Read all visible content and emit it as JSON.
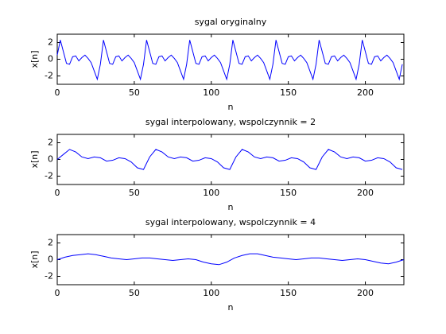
{
  "chart_data": [
    {
      "type": "line",
      "title": "sygal oryginalny",
      "xlabel": "n",
      "ylabel": "x[n]",
      "color": "#0000ff",
      "xlim": [
        0,
        225
      ],
      "ylim": [
        -3,
        3
      ],
      "xticks": [
        0,
        50,
        100,
        150,
        200
      ],
      "yticks": [
        -2,
        0,
        2
      ],
      "x": [
        0,
        2,
        4,
        6,
        8,
        10,
        12,
        14,
        16,
        18,
        20,
        22,
        24,
        26,
        28,
        30,
        32,
        34,
        36,
        38,
        40,
        42,
        44,
        46,
        48,
        50,
        52,
        54,
        56,
        58,
        60,
        62,
        64,
        66,
        68,
        70,
        72,
        74,
        76,
        78,
        80,
        82,
        84,
        86,
        88,
        90,
        92,
        94,
        96,
        98,
        100,
        102,
        104,
        106,
        108,
        110,
        112,
        114,
        116,
        118,
        120,
        122,
        124,
        126,
        128,
        130,
        132,
        134,
        136,
        138,
        140,
        142,
        144,
        146,
        148,
        150,
        152,
        154,
        156,
        158,
        160,
        162,
        164,
        166,
        168,
        170,
        172,
        174,
        176,
        178,
        180,
        182,
        184,
        186,
        188,
        190,
        192,
        194,
        196,
        198,
        200,
        202,
        204,
        206,
        208,
        210,
        212,
        214,
        216,
        218,
        220,
        222,
        224
      ],
      "values": [
        0.5,
        2.3,
        0.9,
        -0.5,
        -0.6,
        0.3,
        0.4,
        -0.2,
        0.2,
        0.5,
        0.1,
        -0.4,
        -1.4,
        -2.4,
        -0.6,
        2.3,
        0.9,
        -0.5,
        -0.6,
        0.3,
        0.4,
        -0.2,
        0.2,
        0.5,
        0.1,
        -0.4,
        -1.4,
        -2.4,
        -0.6,
        2.3,
        0.9,
        -0.5,
        -0.6,
        0.3,
        0.4,
        -0.2,
        0.2,
        0.5,
        0.1,
        -0.4,
        -1.4,
        -2.4,
        -0.6,
        2.3,
        0.9,
        -0.5,
        -0.6,
        0.3,
        0.4,
        -0.2,
        0.2,
        0.5,
        0.1,
        -0.4,
        -1.4,
        -2.4,
        -0.6,
        2.3,
        0.9,
        -0.5,
        -0.6,
        0.3,
        0.4,
        -0.2,
        0.2,
        0.5,
        0.1,
        -0.4,
        -1.4,
        -2.4,
        -0.6,
        2.3,
        0.9,
        -0.5,
        -0.6,
        0.3,
        0.4,
        -0.2,
        0.2,
        0.5,
        0.1,
        -0.4,
        -1.4,
        -2.4,
        -0.6,
        2.3,
        0.9,
        -0.5,
        -0.6,
        0.3,
        0.4,
        -0.2,
        0.2,
        0.5,
        0.1,
        -0.4,
        -1.4,
        -2.4,
        -0.6,
        2.3,
        0.9,
        -0.5,
        -0.6,
        0.3,
        0.4,
        -0.2,
        0.2,
        0.5,
        0.1,
        -0.4,
        -1.4,
        -2.4,
        -0.6
      ]
    },
    {
      "type": "line",
      "title": "sygal interpolowany, wspolczynnik = 2",
      "xlabel": "n",
      "ylabel": "x[n]",
      "color": "#0000ff",
      "xlim": [
        0,
        225
      ],
      "ylim": [
        -3,
        3
      ],
      "xticks": [
        0,
        50,
        100,
        150,
        200
      ],
      "yticks": [
        -2,
        0,
        2
      ],
      "x": [
        0,
        4,
        8,
        12,
        16,
        20,
        24,
        28,
        32,
        36,
        40,
        44,
        48,
        52,
        56,
        60,
        64,
        68,
        72,
        76,
        80,
        84,
        88,
        92,
        96,
        100,
        104,
        108,
        112,
        116,
        120,
        124,
        128,
        132,
        136,
        140,
        144,
        148,
        152,
        156,
        160,
        164,
        168,
        172,
        176,
        180,
        184,
        188,
        192,
        196,
        200,
        204,
        208,
        212,
        216,
        220,
        224
      ],
      "values": [
        0.0,
        0.6,
        1.2,
        0.9,
        0.3,
        0.1,
        0.3,
        0.2,
        -0.2,
        -0.1,
        0.2,
        0.1,
        -0.3,
        -1.0,
        -1.2,
        0.3,
        1.2,
        0.9,
        0.3,
        0.1,
        0.3,
        0.2,
        -0.2,
        -0.1,
        0.2,
        0.1,
        -0.3,
        -1.0,
        -1.2,
        0.3,
        1.2,
        0.9,
        0.3,
        0.1,
        0.3,
        0.2,
        -0.2,
        -0.1,
        0.2,
        0.1,
        -0.3,
        -1.0,
        -1.2,
        0.3,
        1.2,
        0.9,
        0.3,
        0.1,
        0.3,
        0.2,
        -0.2,
        -0.1,
        0.2,
        0.1,
        -0.3,
        -1.0,
        -1.2
      ]
    },
    {
      "type": "line",
      "title": "sygal interpolowany, wspolczynnik = 4",
      "xlabel": "n",
      "ylabel": "x[n]",
      "color": "#0000ff",
      "xlim": [
        0,
        225
      ],
      "ylim": [
        -3,
        3
      ],
      "xticks": [
        0,
        50,
        100,
        150,
        200
      ],
      "yticks": [
        -2,
        0,
        2
      ],
      "x": [
        0,
        5,
        10,
        15,
        20,
        25,
        30,
        35,
        40,
        45,
        50,
        55,
        60,
        65,
        70,
        75,
        80,
        85,
        90,
        95,
        100,
        105,
        110,
        115,
        120,
        125,
        130,
        135,
        140,
        145,
        150,
        155,
        160,
        165,
        170,
        175,
        180,
        185,
        190,
        195,
        200,
        205,
        210,
        215,
        220,
        225
      ],
      "values": [
        0.0,
        0.3,
        0.5,
        0.6,
        0.7,
        0.6,
        0.4,
        0.2,
        0.1,
        0.0,
        0.1,
        0.2,
        0.2,
        0.1,
        0.0,
        -0.1,
        0.0,
        0.1,
        0.0,
        -0.3,
        -0.5,
        -0.6,
        -0.3,
        0.2,
        0.5,
        0.7,
        0.7,
        0.5,
        0.3,
        0.2,
        0.1,
        0.0,
        0.1,
        0.2,
        0.2,
        0.1,
        0.0,
        -0.1,
        0.0,
        0.1,
        0.0,
        -0.2,
        -0.4,
        -0.5,
        -0.3,
        0.0
      ]
    }
  ]
}
